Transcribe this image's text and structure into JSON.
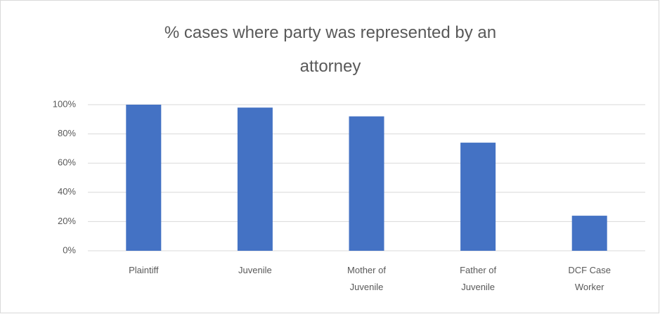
{
  "chart_data": {
    "type": "bar",
    "title": "% cases where party was represented by an attorney",
    "categories": [
      "Plaintiff",
      "Juvenile",
      "Mother of Juvenile",
      "Father of Juvenile",
      "DCF Case Worker"
    ],
    "values": [
      100,
      98,
      92,
      74,
      24
    ],
    "color": "#4472c4",
    "ylim": [
      0,
      100
    ],
    "yticks": [
      {
        "value": 0,
        "label": "0%"
      },
      {
        "value": 20,
        "label": "20%"
      },
      {
        "value": 40,
        "label": "40%"
      },
      {
        "value": 60,
        "label": "60%"
      },
      {
        "value": 80,
        "label": "80%"
      },
      {
        "value": 100,
        "label": "100%"
      }
    ],
    "grid": true
  }
}
